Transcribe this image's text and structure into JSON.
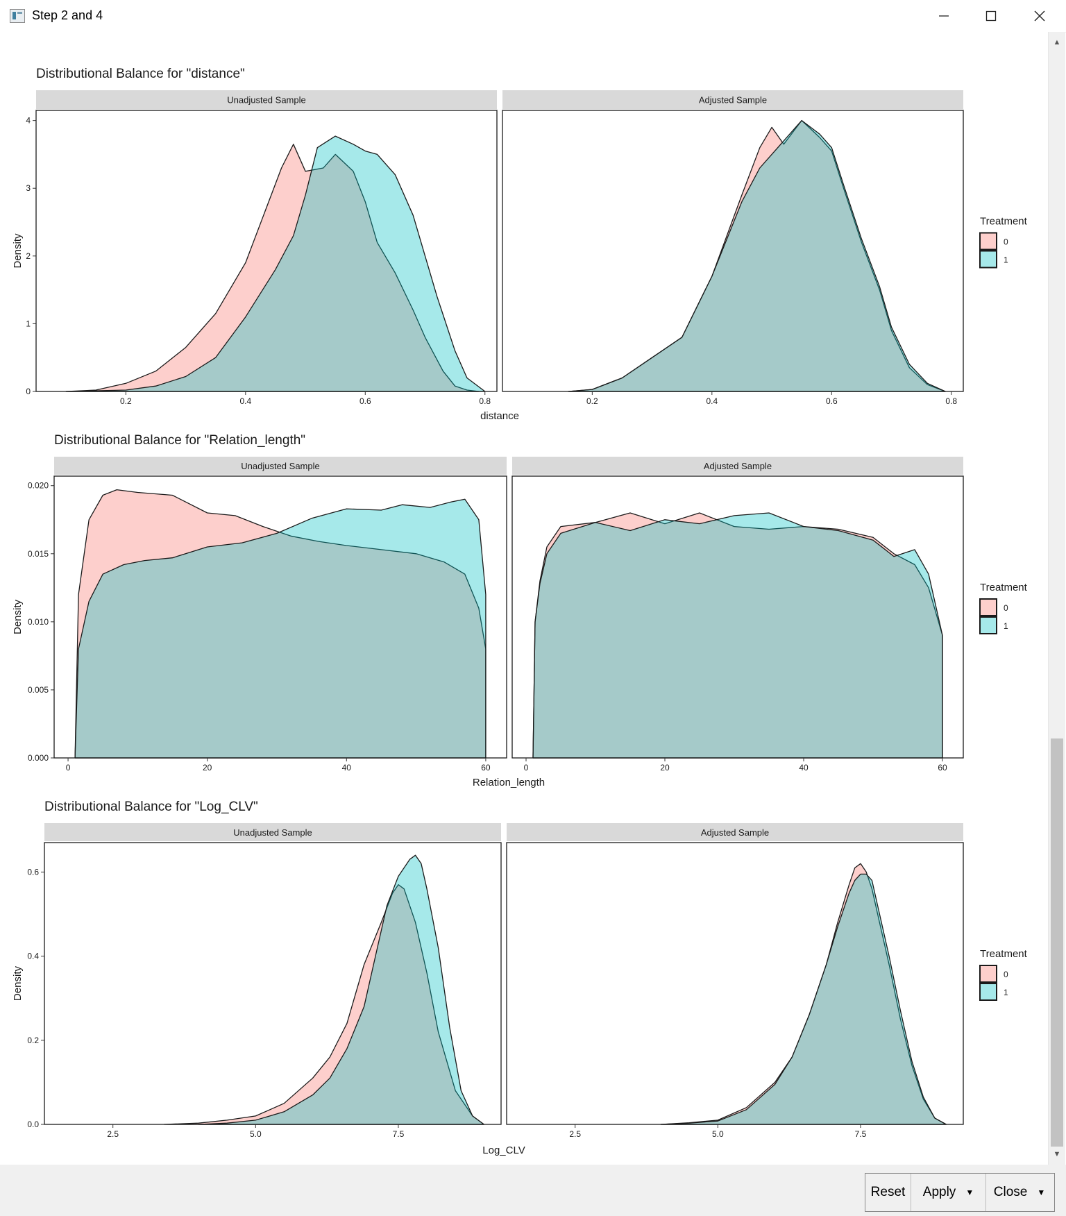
{
  "window": {
    "title": "Step 2 and 4",
    "minimize_icon": "minimize-icon",
    "maximize_icon": "maximize-icon",
    "close_icon": "close-icon"
  },
  "colors": {
    "control": "#f8766d",
    "treated": "#00bfc4",
    "strip": "#d9d9d9"
  },
  "buttons": {
    "reset": "Reset",
    "apply": "Apply",
    "close": "Close"
  },
  "chart_data": [
    {
      "type": "area",
      "title": "Distributional Balance for \"distance\"",
      "xlabel": "distance",
      "ylabel": "Density",
      "panels": [
        "Unadjusted Sample",
        "Adjusted Sample"
      ],
      "xlim": [
        0.05,
        0.82
      ],
      "ylim": [
        0,
        4.15
      ],
      "xticks": [
        "0.2",
        "0.4",
        "0.6",
        "0.8"
      ],
      "xtick_values": [
        0.2,
        0.4,
        0.6,
        0.8
      ],
      "yticks": [
        "0",
        "1",
        "2",
        "3",
        "4"
      ],
      "ytick_values": [
        0,
        1,
        2,
        3,
        4
      ],
      "legend": {
        "title": "Treatment",
        "labels": [
          "0",
          "1"
        ],
        "position": "right"
      },
      "series": [
        {
          "panel": "Unadjusted Sample",
          "name": "0",
          "x": [
            0.1,
            0.15,
            0.2,
            0.25,
            0.3,
            0.35,
            0.4,
            0.43,
            0.46,
            0.48,
            0.5,
            0.53,
            0.55,
            0.58,
            0.6,
            0.62,
            0.65,
            0.68,
            0.7,
            0.73,
            0.75,
            0.77,
            0.79
          ],
          "y": [
            0.0,
            0.02,
            0.12,
            0.3,
            0.65,
            1.15,
            1.9,
            2.6,
            3.3,
            3.65,
            3.25,
            3.3,
            3.5,
            3.25,
            2.8,
            2.2,
            1.75,
            1.2,
            0.8,
            0.3,
            0.08,
            0.02,
            0.0
          ]
        },
        {
          "panel": "Unadjusted Sample",
          "name": "1",
          "x": [
            0.1,
            0.2,
            0.25,
            0.3,
            0.35,
            0.4,
            0.45,
            0.48,
            0.5,
            0.52,
            0.55,
            0.58,
            0.6,
            0.62,
            0.65,
            0.68,
            0.7,
            0.72,
            0.75,
            0.77,
            0.8
          ],
          "y": [
            0.0,
            0.02,
            0.08,
            0.22,
            0.5,
            1.1,
            1.8,
            2.3,
            2.9,
            3.6,
            3.77,
            3.65,
            3.55,
            3.5,
            3.2,
            2.6,
            2.0,
            1.4,
            0.6,
            0.2,
            0.0
          ]
        },
        {
          "panel": "Adjusted Sample",
          "name": "0",
          "x": [
            0.16,
            0.2,
            0.25,
            0.3,
            0.35,
            0.4,
            0.45,
            0.48,
            0.5,
            0.52,
            0.55,
            0.58,
            0.6,
            0.62,
            0.65,
            0.68,
            0.7,
            0.73,
            0.76,
            0.79
          ],
          "y": [
            0.0,
            0.03,
            0.2,
            0.5,
            0.8,
            1.7,
            2.9,
            3.6,
            3.9,
            3.65,
            4.0,
            3.75,
            3.55,
            3.0,
            2.2,
            1.5,
            0.9,
            0.35,
            0.1,
            0.0
          ]
        },
        {
          "panel": "Adjusted Sample",
          "name": "1",
          "x": [
            0.16,
            0.2,
            0.25,
            0.3,
            0.35,
            0.4,
            0.45,
            0.48,
            0.5,
            0.52,
            0.55,
            0.58,
            0.6,
            0.62,
            0.65,
            0.68,
            0.7,
            0.73,
            0.76,
            0.79
          ],
          "y": [
            0.0,
            0.03,
            0.2,
            0.5,
            0.8,
            1.7,
            2.8,
            3.3,
            3.5,
            3.7,
            4.0,
            3.8,
            3.6,
            3.05,
            2.25,
            1.55,
            0.95,
            0.4,
            0.12,
            0.0
          ]
        }
      ]
    },
    {
      "type": "area",
      "title": "Distributional Balance for \"Relation_length\"",
      "xlabel": "Relation_length",
      "ylabel": "Density",
      "panels": [
        "Unadjusted Sample",
        "Adjusted Sample"
      ],
      "xlim": [
        -2,
        63
      ],
      "ylim": [
        0,
        0.0207
      ],
      "xticks": [
        "0",
        "20",
        "40",
        "60"
      ],
      "xtick_values": [
        0,
        20,
        40,
        60
      ],
      "yticks": [
        "0.000",
        "0.005",
        "0.010",
        "0.015",
        "0.020"
      ],
      "ytick_values": [
        0,
        0.005,
        0.01,
        0.015,
        0.02
      ],
      "legend": {
        "title": "Treatment",
        "labels": [
          "0",
          "1"
        ],
        "position": "right"
      },
      "series": [
        {
          "panel": "Unadjusted Sample",
          "name": "0",
          "x": [
            1,
            1.5,
            3,
            5,
            7,
            10,
            15,
            20,
            24,
            28,
            32,
            36,
            40,
            45,
            50,
            54,
            57,
            59,
            60
          ],
          "y": [
            0,
            0.012,
            0.0175,
            0.0193,
            0.0197,
            0.0195,
            0.0193,
            0.018,
            0.0178,
            0.017,
            0.0163,
            0.0159,
            0.0156,
            0.0153,
            0.015,
            0.0144,
            0.0135,
            0.011,
            0.008
          ]
        },
        {
          "panel": "Unadjusted Sample",
          "name": "1",
          "x": [
            1,
            1.5,
            3,
            5,
            8,
            11,
            15,
            20,
            25,
            30,
            35,
            40,
            45,
            48,
            52,
            55,
            57,
            59,
            60
          ],
          "y": [
            0,
            0.008,
            0.0115,
            0.0135,
            0.0142,
            0.0145,
            0.0147,
            0.0155,
            0.0158,
            0.0165,
            0.0176,
            0.0183,
            0.0182,
            0.0186,
            0.0184,
            0.0188,
            0.019,
            0.0175,
            0.012
          ]
        },
        {
          "panel": "Adjusted Sample",
          "name": "0",
          "x": [
            1,
            1.3,
            2,
            3,
            5,
            10,
            15,
            20,
            25,
            30,
            35,
            40,
            45,
            50,
            53,
            56,
            58,
            60
          ],
          "y": [
            0,
            0.01,
            0.013,
            0.0155,
            0.017,
            0.0173,
            0.018,
            0.0172,
            0.018,
            0.017,
            0.0168,
            0.017,
            0.0168,
            0.0162,
            0.015,
            0.0142,
            0.0125,
            0.009
          ]
        },
        {
          "panel": "Adjusted Sample",
          "name": "1",
          "x": [
            1,
            1.3,
            2,
            3,
            5,
            10,
            15,
            20,
            25,
            30,
            35,
            40,
            45,
            50,
            53,
            56,
            58,
            60
          ],
          "y": [
            0,
            0.01,
            0.0128,
            0.015,
            0.0165,
            0.0173,
            0.0167,
            0.0175,
            0.0172,
            0.0178,
            0.018,
            0.017,
            0.0167,
            0.016,
            0.0148,
            0.0153,
            0.0135,
            0.009
          ]
        }
      ]
    },
    {
      "type": "area",
      "title": "Distributional Balance for \"Log_CLV\"",
      "xlabel": "Log_CLV",
      "ylabel": "Density",
      "panels": [
        "Unadjusted Sample",
        "Adjusted Sample"
      ],
      "xlim": [
        1.3,
        9.3
      ],
      "ylim": [
        0,
        0.67
      ],
      "xticks": [
        "2.5",
        "5.0",
        "7.5"
      ],
      "xtick_values": [
        2.5,
        5.0,
        7.5
      ],
      "yticks": [
        "0.0",
        "0.2",
        "0.4",
        "0.6"
      ],
      "ytick_values": [
        0,
        0.2,
        0.4,
        0.6
      ],
      "legend": {
        "title": "Treatment",
        "labels": [
          "0",
          "1"
        ],
        "position": "right"
      },
      "series": [
        {
          "panel": "Unadjusted Sample",
          "name": "0",
          "x": [
            3.4,
            4.0,
            4.5,
            5.0,
            5.5,
            6.0,
            6.3,
            6.6,
            6.9,
            7.2,
            7.4,
            7.5,
            7.6,
            7.8,
            8.0,
            8.2,
            8.5,
            8.8,
            9.0
          ],
          "y": [
            0,
            0.003,
            0.01,
            0.02,
            0.05,
            0.11,
            0.16,
            0.24,
            0.38,
            0.48,
            0.55,
            0.57,
            0.56,
            0.48,
            0.36,
            0.22,
            0.08,
            0.02,
            0.0
          ]
        },
        {
          "panel": "Unadjusted Sample",
          "name": "1",
          "x": [
            4.0,
            4.5,
            5.0,
            5.5,
            6.0,
            6.3,
            6.6,
            6.9,
            7.1,
            7.3,
            7.5,
            7.7,
            7.8,
            7.9,
            8.0,
            8.2,
            8.4,
            8.6,
            8.8,
            9.0
          ],
          "y": [
            0,
            0.003,
            0.01,
            0.03,
            0.07,
            0.11,
            0.18,
            0.28,
            0.4,
            0.52,
            0.59,
            0.63,
            0.64,
            0.62,
            0.56,
            0.42,
            0.23,
            0.08,
            0.02,
            0.0
          ]
        },
        {
          "panel": "Adjusted Sample",
          "name": "0",
          "x": [
            4.0,
            4.5,
            5.0,
            5.5,
            6.0,
            6.3,
            6.6,
            6.9,
            7.1,
            7.3,
            7.4,
            7.5,
            7.6,
            7.7,
            7.8,
            8.0,
            8.2,
            8.4,
            8.6,
            8.8,
            9.0
          ],
          "y": [
            0,
            0.004,
            0.01,
            0.04,
            0.1,
            0.16,
            0.26,
            0.38,
            0.48,
            0.57,
            0.61,
            0.62,
            0.6,
            0.56,
            0.5,
            0.38,
            0.25,
            0.14,
            0.06,
            0.015,
            0.0
          ]
        },
        {
          "panel": "Adjusted Sample",
          "name": "1",
          "x": [
            4.0,
            4.5,
            5.0,
            5.5,
            6.0,
            6.3,
            6.6,
            6.9,
            7.1,
            7.3,
            7.4,
            7.5,
            7.6,
            7.7,
            7.8,
            8.0,
            8.2,
            8.4,
            8.6,
            8.8,
            9.0
          ],
          "y": [
            0,
            0.003,
            0.008,
            0.035,
            0.095,
            0.16,
            0.26,
            0.38,
            0.47,
            0.55,
            0.58,
            0.595,
            0.595,
            0.58,
            0.52,
            0.4,
            0.27,
            0.15,
            0.065,
            0.015,
            0.0
          ]
        }
      ]
    }
  ]
}
